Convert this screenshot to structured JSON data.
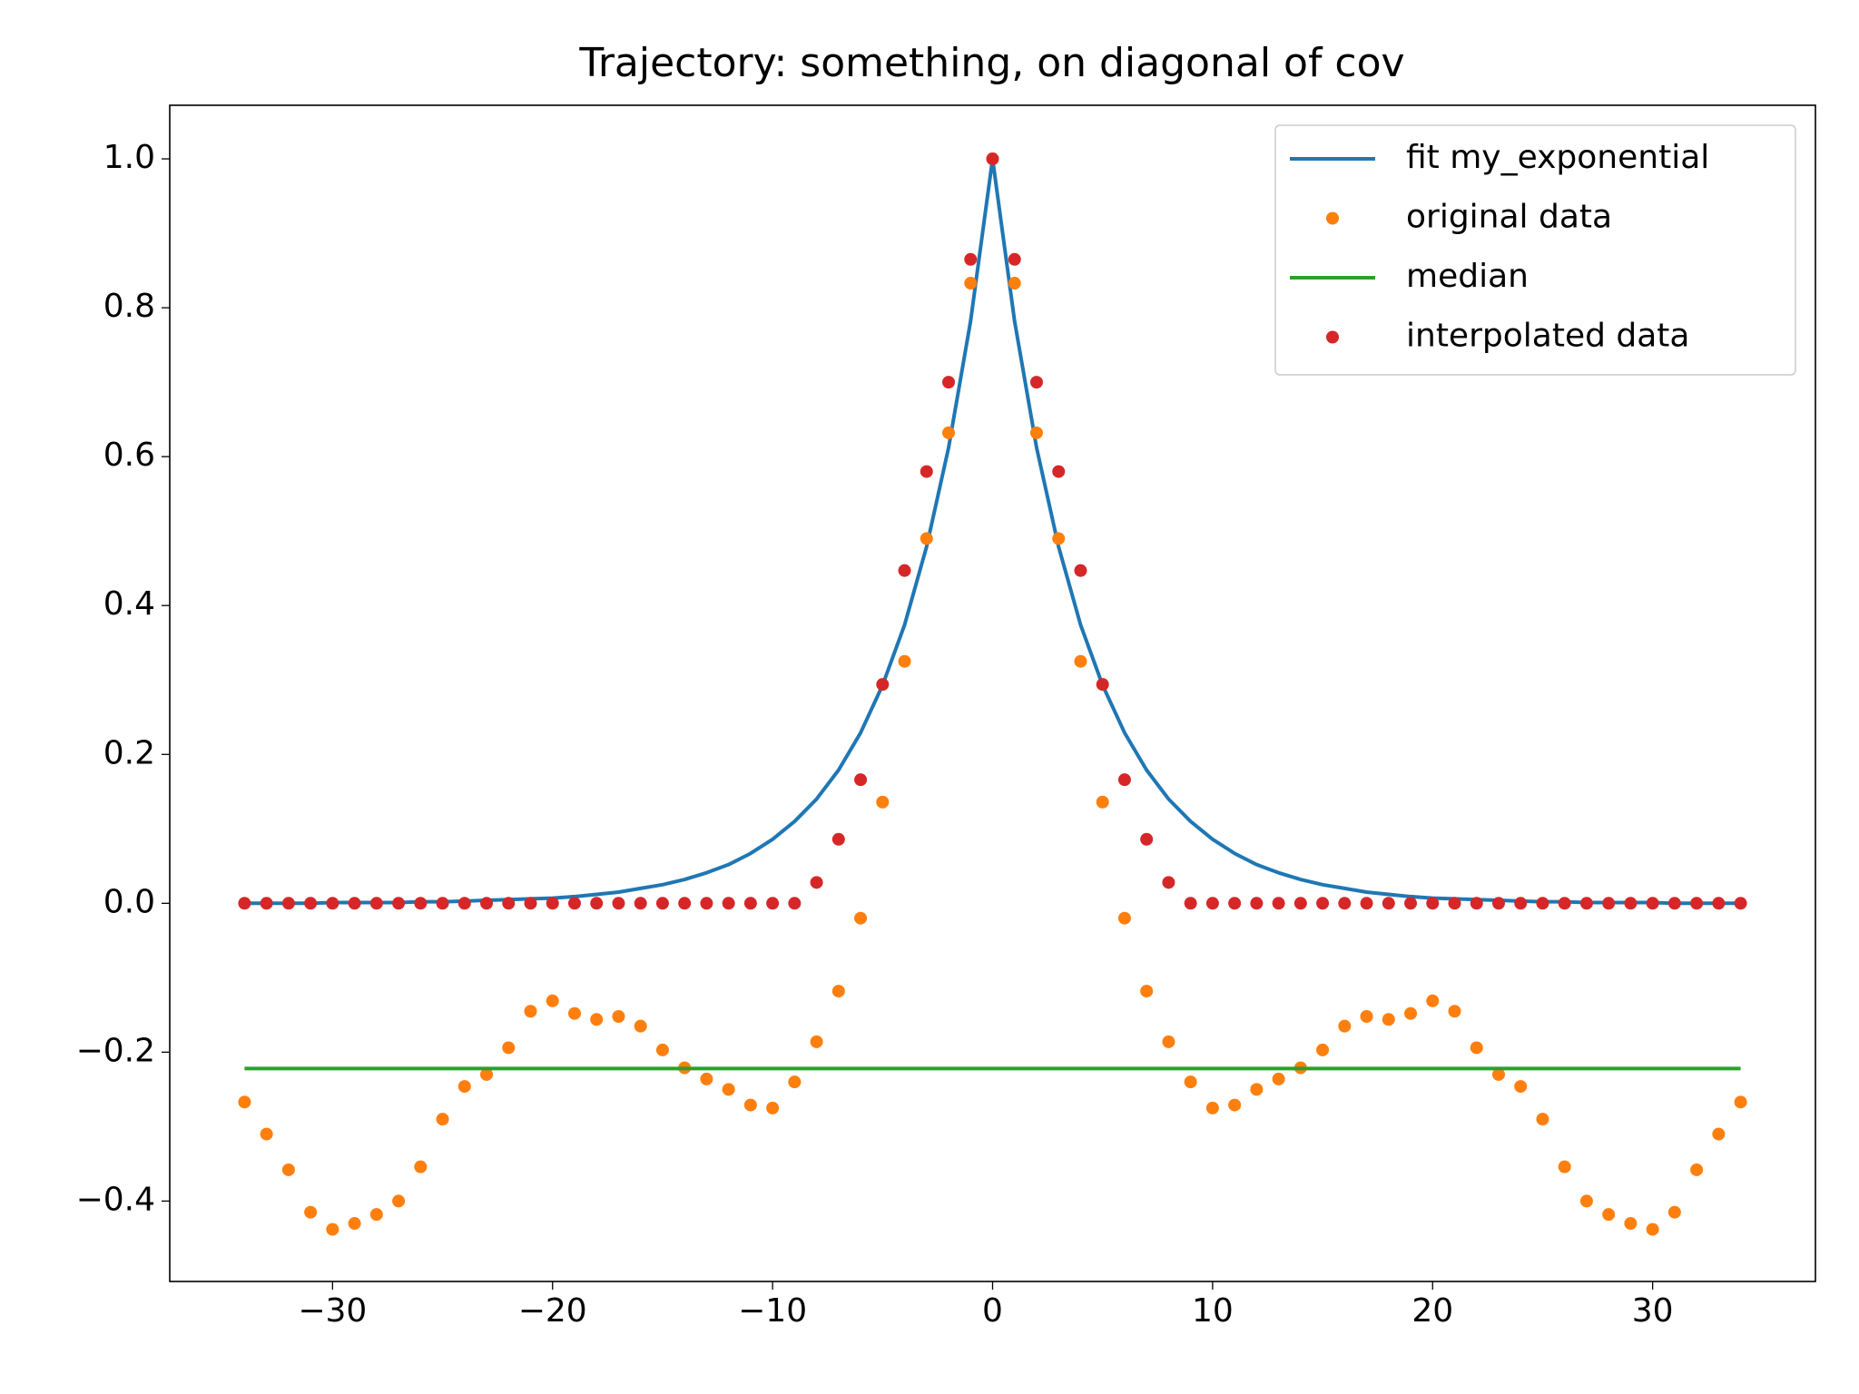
{
  "chart_data": {
    "type": "line",
    "title": "Trajectory: something, on diagonal of cov",
    "x": [
      -34,
      -33,
      -32,
      -31,
      -30,
      -29,
      -28,
      -27,
      -26,
      -25,
      -24,
      -23,
      -22,
      -21,
      -20,
      -19,
      -18,
      -17,
      -16,
      -15,
      -14,
      -13,
      -12,
      -11,
      -10,
      -9,
      -8,
      -7,
      -6,
      -5,
      -4,
      -3,
      -2,
      -1,
      0,
      1,
      2,
      3,
      4,
      5,
      6,
      7,
      8,
      9,
      10,
      11,
      12,
      13,
      14,
      15,
      16,
      17,
      18,
      19,
      20,
      21,
      22,
      23,
      24,
      25,
      26,
      27,
      28,
      29,
      30,
      31,
      32,
      33,
      34
    ],
    "series": [
      {
        "name": "fit my_exponential",
        "color": "#1f77b4",
        "style": "line",
        "values": [
          0,
          0,
          0,
          0,
          0.001,
          0.001,
          0.001,
          0.001,
          0.002,
          0.002,
          0.003,
          0.004,
          0.005,
          0.006,
          0.007,
          0.009,
          0.012,
          0.015,
          0.02,
          0.025,
          0.032,
          0.041,
          0.052,
          0.067,
          0.086,
          0.11,
          0.14,
          0.179,
          0.229,
          0.293,
          0.374,
          0.479,
          0.612,
          0.782,
          1.0,
          0.782,
          0.612,
          0.479,
          0.374,
          0.293,
          0.229,
          0.179,
          0.14,
          0.11,
          0.086,
          0.067,
          0.052,
          0.041,
          0.032,
          0.025,
          0.02,
          0.015,
          0.012,
          0.009,
          0.007,
          0.006,
          0.005,
          0.004,
          0.003,
          0.002,
          0.002,
          0.001,
          0.001,
          0.001,
          0.001,
          0,
          0,
          0,
          0
        ]
      },
      {
        "name": "original data",
        "color": "#ff7f0e",
        "style": "marker",
        "values": [
          -0.267,
          -0.31,
          -0.358,
          -0.415,
          -0.438,
          -0.43,
          -0.418,
          -0.4,
          -0.354,
          -0.29,
          -0.246,
          -0.23,
          -0.194,
          -0.145,
          -0.131,
          -0.148,
          -0.156,
          -0.152,
          -0.165,
          -0.197,
          -0.221,
          -0.236,
          -0.25,
          -0.271,
          -0.275,
          -0.24,
          -0.186,
          -0.118,
          -0.02,
          0.136,
          0.325,
          0.49,
          0.632,
          0.833,
          1.0,
          0.833,
          0.632,
          0.49,
          0.325,
          0.136,
          -0.02,
          -0.118,
          -0.186,
          -0.24,
          -0.275,
          -0.271,
          -0.25,
          -0.236,
          -0.221,
          -0.197,
          -0.165,
          -0.152,
          -0.156,
          -0.148,
          -0.131,
          -0.145,
          -0.194,
          -0.23,
          -0.246,
          -0.29,
          -0.354,
          -0.4,
          -0.418,
          -0.43,
          -0.438,
          -0.415,
          -0.358,
          -0.31,
          -0.267
        ]
      },
      {
        "name": "median",
        "color": "#2ca02c",
        "style": "line",
        "values": [
          -0.222,
          -0.222,
          -0.222,
          -0.222,
          -0.222,
          -0.222,
          -0.222,
          -0.222,
          -0.222,
          -0.222,
          -0.222,
          -0.222,
          -0.222,
          -0.222,
          -0.222,
          -0.222,
          -0.222,
          -0.222,
          -0.222,
          -0.222,
          -0.222,
          -0.222,
          -0.222,
          -0.222,
          -0.222,
          -0.222,
          -0.222,
          -0.222,
          -0.222,
          -0.222,
          -0.222,
          -0.222,
          -0.222,
          -0.222,
          -0.222,
          -0.222,
          -0.222,
          -0.222,
          -0.222,
          -0.222,
          -0.222,
          -0.222,
          -0.222,
          -0.222,
          -0.222,
          -0.222,
          -0.222,
          -0.222,
          -0.222,
          -0.222,
          -0.222,
          -0.222,
          -0.222,
          -0.222,
          -0.222,
          -0.222,
          -0.222,
          -0.222,
          -0.222,
          -0.222,
          -0.222,
          -0.222,
          -0.222,
          -0.222,
          -0.222,
          -0.222,
          -0.222,
          -0.222,
          -0.222
        ]
      },
      {
        "name": "interpolated data",
        "color": "#d62728",
        "style": "marker",
        "values": [
          0,
          0,
          0,
          0,
          0,
          0,
          0,
          0,
          0,
          0,
          0,
          0,
          0,
          0,
          0,
          0,
          0,
          0,
          0,
          0,
          0,
          0,
          0,
          0,
          0,
          0,
          0.028,
          0.086,
          0.166,
          0.294,
          0.447,
          0.58,
          0.7,
          0.865,
          1.0,
          0.865,
          0.7,
          0.58,
          0.447,
          0.294,
          0.166,
          0.086,
          0.028,
          0,
          0,
          0,
          0,
          0,
          0,
          0,
          0,
          0,
          0,
          0,
          0,
          0,
          0,
          0,
          0,
          0,
          0,
          0,
          0,
          0,
          0,
          0,
          0,
          0,
          0
        ]
      }
    ],
    "xlim": [
      -37.4,
      37.4
    ],
    "ylim": [
      -0.508,
      1.072
    ],
    "xticks": [
      {
        "value": -30,
        "label": "−30"
      },
      {
        "value": -20,
        "label": "−20"
      },
      {
        "value": -10,
        "label": "−10"
      },
      0,
      10,
      20,
      30
    ],
    "yticks": [
      {
        "value": -0.4,
        "label": "−0.4"
      },
      {
        "value": -0.2,
        "label": "−0.2"
      },
      {
        "value": 0,
        "label": "0.0"
      },
      0.2,
      0.4,
      0.6,
      0.8,
      {
        "value": 1,
        "label": "1.0"
      }
    ],
    "legend": "upper right",
    "grid": false
  }
}
